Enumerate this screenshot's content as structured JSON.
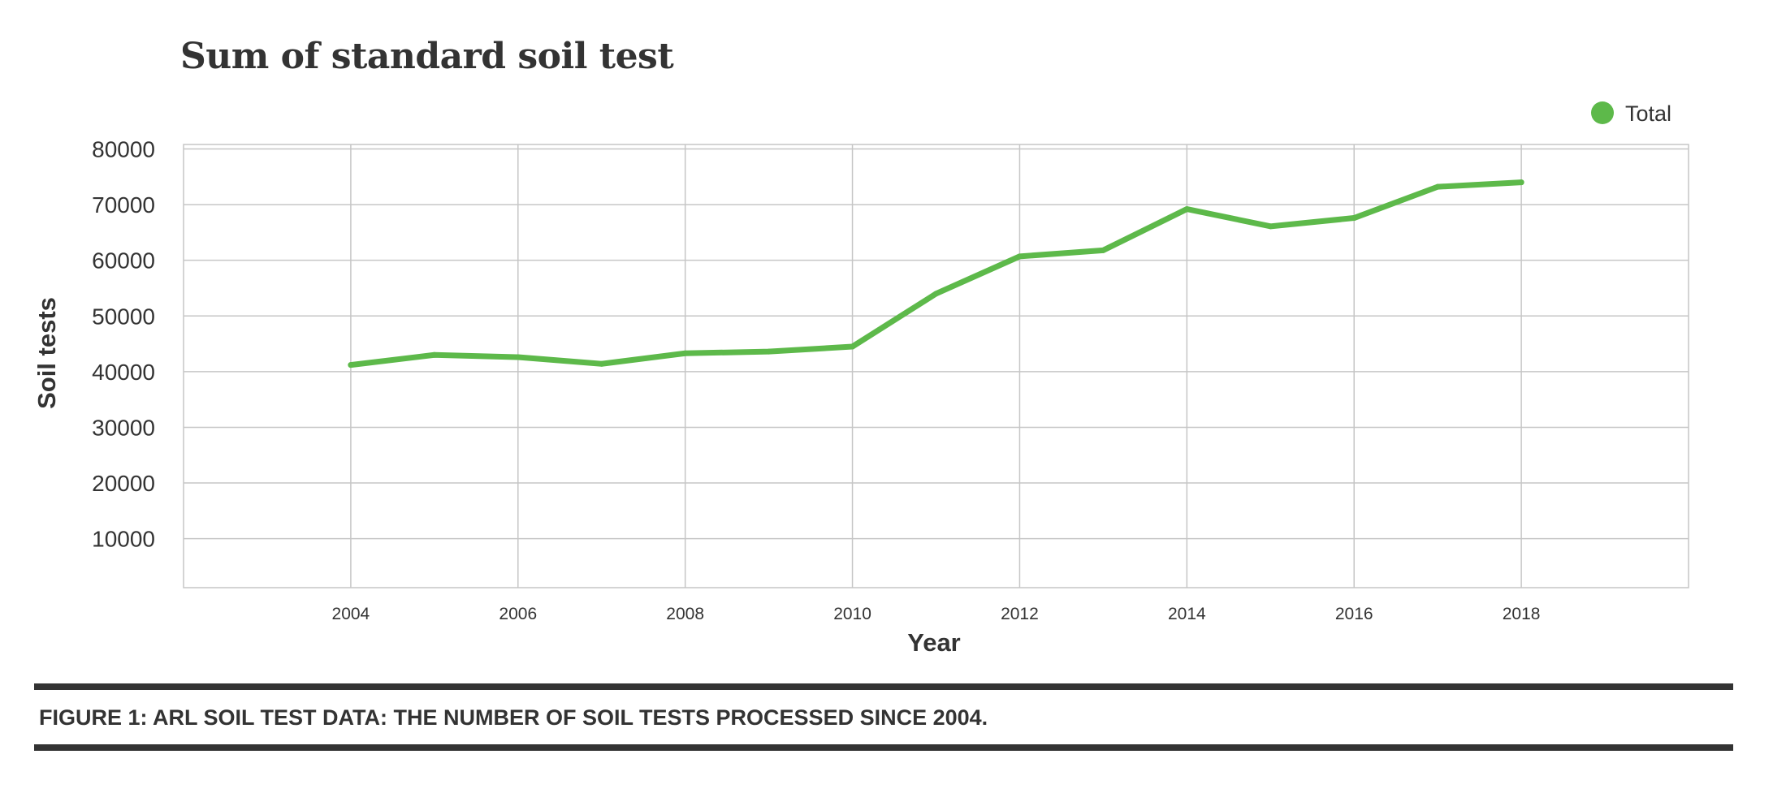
{
  "chart_data": {
    "type": "line",
    "title": "Sum of standard soil test",
    "xlabel": "Year",
    "ylabel": "Soil tests",
    "x": [
      2004,
      2005,
      2006,
      2007,
      2008,
      2009,
      2010,
      2011,
      2012,
      2013,
      2014,
      2015,
      2016,
      2017,
      2018
    ],
    "x_ticks": [
      "2004",
      "2006",
      "2008",
      "2010",
      "2012",
      "2014",
      "2016",
      "2018"
    ],
    "y_ticks": [
      "10000",
      "20000",
      "30000",
      "40000",
      "50000",
      "60000",
      "70000",
      "80000"
    ],
    "xlim": [
      2002,
      2020
    ],
    "ylim": [
      1200,
      80800
    ],
    "grid": true,
    "legend_position": "top-right",
    "series": [
      {
        "name": "Total",
        "color": "#5db94a",
        "values": [
          41200,
          43000,
          42600,
          41400,
          43300,
          43600,
          44500,
          54000,
          60700,
          61800,
          69200,
          66100,
          67600,
          73200,
          74000
        ]
      }
    ]
  },
  "caption": "FIGURE 1: ARL SOIL TEST DATA: THE NUMBER OF SOIL TESTS PROCESSED SINCE 2004."
}
